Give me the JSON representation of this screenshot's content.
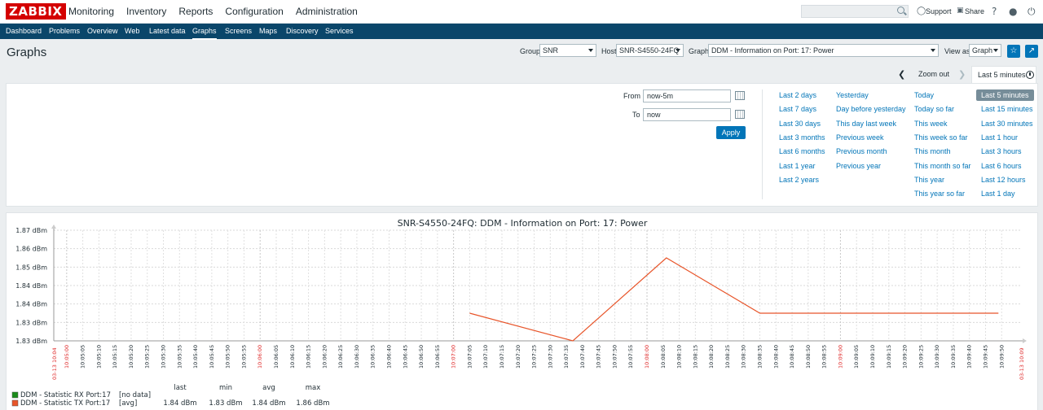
{
  "header": {
    "logo": "ZABBIX",
    "nav": [
      "Monitoring",
      "Inventory",
      "Reports",
      "Configuration",
      "Administration"
    ],
    "support": "Support",
    "share": "Share",
    "help_icon": "?"
  },
  "subnav": [
    "Dashboard",
    "Problems",
    "Overview",
    "Web",
    "Latest data",
    "Graphs",
    "Screens",
    "Maps",
    "Discovery",
    "Services"
  ],
  "page": {
    "title": "Graphs",
    "group_label": "Group",
    "group_value": "SNR",
    "host_label": "Host",
    "host_value": "SNR-S4550-24FQ",
    "graph_label": "Graph",
    "graph_value": "DDM - Information on Port: 17: Power",
    "view_label": "View as",
    "view_value": "Graph"
  },
  "timeselector": {
    "zoom_out": "Zoom out",
    "active_tab": "Last 5 minutes",
    "from_label": "From",
    "from_value": "now-5m",
    "to_label": "To",
    "to_value": "now",
    "apply": "Apply",
    "col1": [
      "Last 2 days",
      "Last 7 days",
      "Last 30 days",
      "Last 3 months",
      "Last 6 months",
      "Last 1 year",
      "Last 2 years"
    ],
    "col2": [
      "Yesterday",
      "Day before yesterday",
      "This day last week",
      "Previous week",
      "Previous month",
      "Previous year"
    ],
    "col3": [
      "Today",
      "Today so far",
      "This week",
      "This week so far",
      "This month",
      "This month so far",
      "This year",
      "This year so far"
    ],
    "col4": [
      "Last 5 minutes",
      "Last 15 minutes",
      "Last 30 minutes",
      "Last 1 hour",
      "Last 3 hours",
      "Last 6 hours",
      "Last 12 hours",
      "Last 1 day"
    ]
  },
  "colors": {
    "tx_series": "#e8552a",
    "rx_series": "#1a8c1a",
    "accent": "#0275b8",
    "navbar": "#0a466a"
  },
  "chart_data": {
    "type": "line",
    "title": "SNR-S4550-24FQ: DDM - Information on Port: 17: Power",
    "yticks": [
      "1.87 dBm",
      "1.86 dBm",
      "1.85 dBm",
      "1.84 dBm",
      "1.84 dBm",
      "1.83 dBm",
      "1.83 dBm"
    ],
    "ylim": [
      1.83,
      1.87
    ],
    "x_start_label": "03-13 10:04",
    "x_end_label": "03-13 10:09",
    "x_ticks": [
      "10:05:00",
      "10:05:05",
      "10:05:10",
      "10:05:15",
      "10:05:20",
      "10:05:25",
      "10:05:30",
      "10:05:35",
      "10:05:40",
      "10:05:45",
      "10:05:50",
      "10:05:55",
      "10:06:00",
      "10:06:05",
      "10:06:10",
      "10:06:15",
      "10:06:20",
      "10:06:25",
      "10:06:30",
      "10:06:35",
      "10:06:40",
      "10:06:45",
      "10:06:50",
      "10:06:55",
      "10:07:00",
      "10:07:05",
      "10:07:10",
      "10:07:15",
      "10:07:20",
      "10:07:25",
      "10:07:30",
      "10:07:35",
      "10:07:40",
      "10:07:45",
      "10:07:50",
      "10:07:55",
      "10:08:00",
      "10:08:05",
      "10:08:10",
      "10:08:15",
      "10:08:20",
      "10:08:25",
      "10:08:30",
      "10:08:35",
      "10:08:40",
      "10:08:45",
      "10:08:50",
      "10:08:55",
      "10:09:00",
      "10:09:05",
      "10:09:10",
      "10:09:15",
      "10:09:20",
      "10:09:25",
      "10:09:30",
      "10:09:35",
      "10:09:40",
      "10:09:45",
      "10:09:50"
    ],
    "x_major": [
      "10:05:00",
      "10:06:00",
      "10:07:00",
      "10:08:00",
      "10:09:00"
    ],
    "series": [
      {
        "name": "DDM - Statistic RX Port:17",
        "func": "[no data]",
        "last": "",
        "min": "",
        "avg": "",
        "max": "",
        "points": []
      },
      {
        "name": "DDM - Statistic TX Port:17",
        "func": "[avg]",
        "last": "1.84 dBm",
        "min": "1.83 dBm",
        "avg": "1.84 dBm",
        "max": "1.86 dBm",
        "points": [
          {
            "t": "10:07:05",
            "v": 1.84
          },
          {
            "t": "10:07:37",
            "v": 1.83
          },
          {
            "t": "10:08:06",
            "v": 1.86
          },
          {
            "t": "10:08:35",
            "v": 1.84
          },
          {
            "t": "10:09:49",
            "v": 1.84
          }
        ]
      }
    ],
    "legend_headers": [
      "last",
      "min",
      "avg",
      "max"
    ]
  }
}
